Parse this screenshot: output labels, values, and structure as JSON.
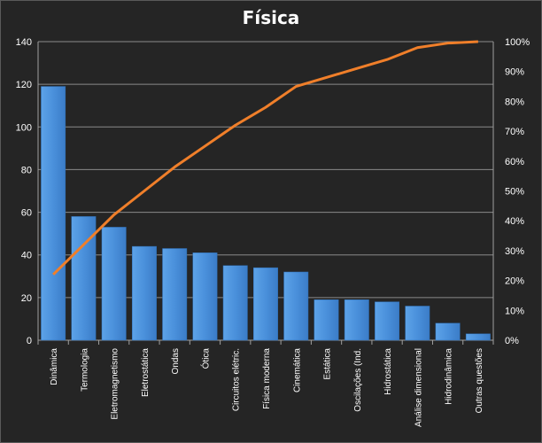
{
  "chart_data": {
    "type": "bar",
    "title": "Física",
    "categories": [
      "Dinâmica",
      "Termologia",
      "Eletromagnetismo",
      "Eletrostática",
      "Ondas",
      "Ótica",
      "Circuitos elétric.",
      "Física moderna",
      "Cinemática",
      "Estática",
      "Oscilações (Ind.",
      "Hidrostática",
      "Análise dimensional",
      "Hidrodinâmica",
      "Outras questões"
    ],
    "series": [
      {
        "type": "bar",
        "values": [
          119,
          58,
          53,
          44,
          43,
          41,
          35,
          34,
          32,
          19,
          19,
          18,
          16,
          8,
          3
        ],
        "axis": "left",
        "color": "#4a8fd6"
      },
      {
        "type": "line",
        "values": [
          22,
          32,
          42,
          50,
          58,
          65,
          72,
          78,
          85,
          88,
          91,
          94,
          98,
          99.5,
          100
        ],
        "axis": "right",
        "color": "#f07f2a"
      }
    ],
    "yleft": {
      "min": 0,
      "max": 140,
      "ticks": [
        "0",
        "20",
        "40",
        "60",
        "80",
        "100",
        "120",
        "140"
      ]
    },
    "yright": {
      "min": 0,
      "max": 100,
      "ticks": [
        "0%",
        "10%",
        "20%",
        "30%",
        "40%",
        "50%",
        "60%",
        "70%",
        "80%",
        "90%",
        "100%"
      ]
    },
    "grid": true
  }
}
